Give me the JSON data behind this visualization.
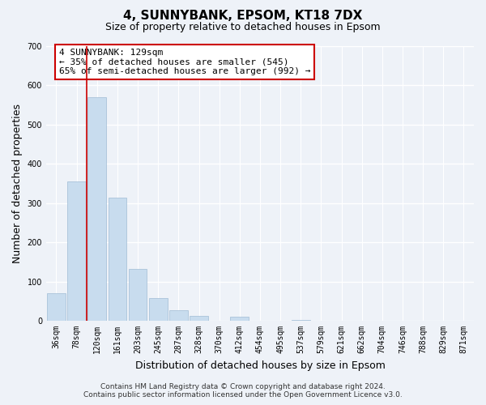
{
  "title": "4, SUNNYBANK, EPSOM, KT18 7DX",
  "subtitle": "Size of property relative to detached houses in Epsom",
  "xlabel": "Distribution of detached houses by size in Epsom",
  "ylabel": "Number of detached properties",
  "bin_labels": [
    "36sqm",
    "78sqm",
    "120sqm",
    "161sqm",
    "203sqm",
    "245sqm",
    "287sqm",
    "328sqm",
    "370sqm",
    "412sqm",
    "454sqm",
    "495sqm",
    "537sqm",
    "579sqm",
    "621sqm",
    "662sqm",
    "704sqm",
    "746sqm",
    "788sqm",
    "829sqm",
    "871sqm"
  ],
  "bar_values": [
    70,
    355,
    570,
    313,
    133,
    57,
    27,
    13,
    0,
    10,
    0,
    0,
    3,
    0,
    0,
    0,
    0,
    0,
    0,
    0,
    0
  ],
  "bar_color": "#c8dcee",
  "bar_edgecolor": "#a0bcd4",
  "vline_x": 1.5,
  "vline_color": "#cc0000",
  "ylim": [
    0,
    700
  ],
  "yticks": [
    0,
    100,
    200,
    300,
    400,
    500,
    600,
    700
  ],
  "annotation_title": "4 SUNNYBANK: 129sqm",
  "annotation_line1": "← 35% of detached houses are smaller (545)",
  "annotation_line2": "65% of semi-detached houses are larger (992) →",
  "footnote1": "Contains HM Land Registry data © Crown copyright and database right 2024.",
  "footnote2": "Contains public sector information licensed under the Open Government Licence v3.0.",
  "background_color": "#eef2f8",
  "grid_color": "#ffffff",
  "title_fontsize": 11,
  "subtitle_fontsize": 9,
  "axis_label_fontsize": 9,
  "tick_fontsize": 7,
  "annotation_fontsize": 8,
  "footnote_fontsize": 6.5
}
